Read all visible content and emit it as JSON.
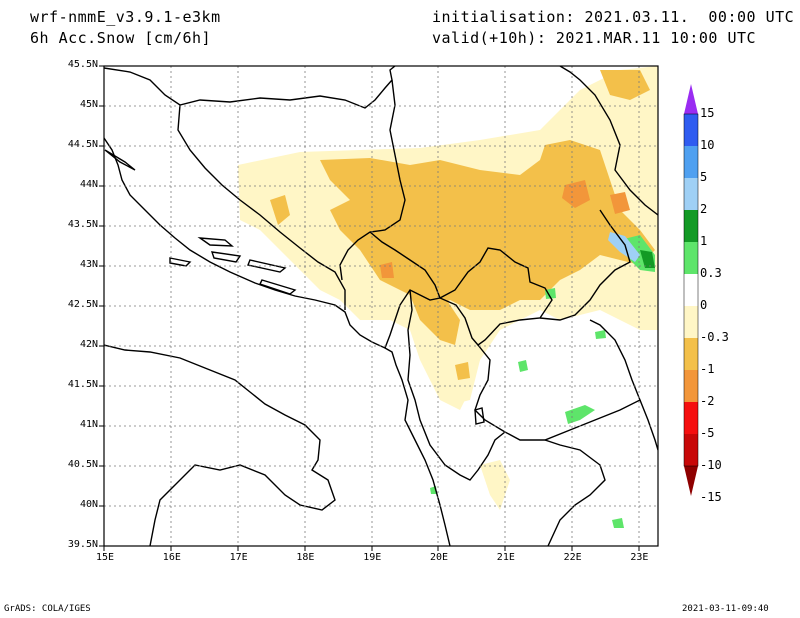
{
  "header": {
    "model": "wrf-nmmE_v3.9.1-e3km",
    "variable": "6h Acc.Snow [cm/6h]",
    "init": "initialisation: 2021.03.11.  00:00 UTC",
    "valid": "valid(+10h): 2021.MAR.11 10:00 UTC"
  },
  "footer": {
    "left": "GrADS: COLA/IGES",
    "right": "2021-03-11-09:40"
  },
  "axes": {
    "lon_labels": [
      "15E",
      "16E",
      "17E",
      "18E",
      "19E",
      "20E",
      "21E",
      "22E",
      "23E"
    ],
    "lat_labels": [
      "45.5N",
      "45N",
      "44.5N",
      "44N",
      "43.5N",
      "43N",
      "42.5N",
      "42N",
      "41.5N",
      "41N",
      "40.5N",
      "40N",
      "39.5N"
    ],
    "lon_range": [
      15,
      23.3
    ],
    "lat_range": [
      39.5,
      45.5
    ]
  },
  "colorbar": {
    "labels": [
      "15",
      "10",
      "5",
      "2",
      "1",
      "0.3",
      "0",
      "-0.3",
      "-1",
      "-2",
      "-5",
      "-10",
      "-15"
    ],
    "colors": [
      "#9a2cf2",
      "#2f5cf0",
      "#4fa0f0",
      "#9fd0f5",
      "#139a25",
      "#5ee56a",
      "#ffffff",
      "#fff6c6",
      "#f3c04a",
      "#f2963a",
      "#f50f0f",
      "#c80808",
      "#8e0000"
    ]
  }
}
